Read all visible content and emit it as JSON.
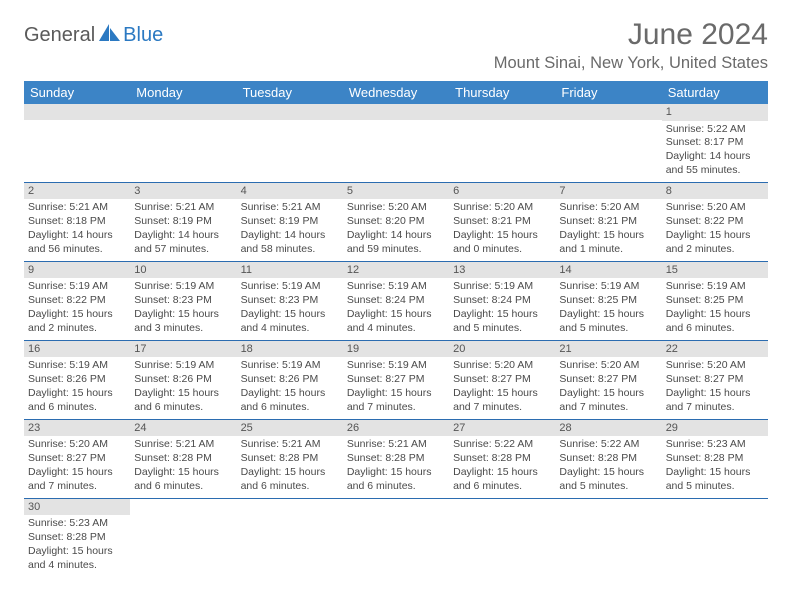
{
  "logo": {
    "text_dark": "General",
    "text_blue": "Blue"
  },
  "title": "June 2024",
  "location": "Mount Sinai, New York, United States",
  "colors": {
    "header_bg": "#3c84c6",
    "header_text": "#ffffff",
    "band_bg": "#e3e3e3",
    "border": "#2b6cb0",
    "logo_blue": "#2b79c2",
    "logo_dark": "#5a5a5a"
  },
  "day_headers": [
    "Sunday",
    "Monday",
    "Tuesday",
    "Wednesday",
    "Thursday",
    "Friday",
    "Saturday"
  ],
  "weeks": [
    [
      {
        "blank": true
      },
      {
        "blank": true
      },
      {
        "blank": true
      },
      {
        "blank": true
      },
      {
        "blank": true
      },
      {
        "blank": true
      },
      {
        "n": "1",
        "sunrise": "5:22 AM",
        "sunset": "8:17 PM",
        "daylight": "14 hours and 55 minutes."
      }
    ],
    [
      {
        "n": "2",
        "sunrise": "5:21 AM",
        "sunset": "8:18 PM",
        "daylight": "14 hours and 56 minutes."
      },
      {
        "n": "3",
        "sunrise": "5:21 AM",
        "sunset": "8:19 PM",
        "daylight": "14 hours and 57 minutes."
      },
      {
        "n": "4",
        "sunrise": "5:21 AM",
        "sunset": "8:19 PM",
        "daylight": "14 hours and 58 minutes."
      },
      {
        "n": "5",
        "sunrise": "5:20 AM",
        "sunset": "8:20 PM",
        "daylight": "14 hours and 59 minutes."
      },
      {
        "n": "6",
        "sunrise": "5:20 AM",
        "sunset": "8:21 PM",
        "daylight": "15 hours and 0 minutes."
      },
      {
        "n": "7",
        "sunrise": "5:20 AM",
        "sunset": "8:21 PM",
        "daylight": "15 hours and 1 minute."
      },
      {
        "n": "8",
        "sunrise": "5:20 AM",
        "sunset": "8:22 PM",
        "daylight": "15 hours and 2 minutes."
      }
    ],
    [
      {
        "n": "9",
        "sunrise": "5:19 AM",
        "sunset": "8:22 PM",
        "daylight": "15 hours and 2 minutes."
      },
      {
        "n": "10",
        "sunrise": "5:19 AM",
        "sunset": "8:23 PM",
        "daylight": "15 hours and 3 minutes."
      },
      {
        "n": "11",
        "sunrise": "5:19 AM",
        "sunset": "8:23 PM",
        "daylight": "15 hours and 4 minutes."
      },
      {
        "n": "12",
        "sunrise": "5:19 AM",
        "sunset": "8:24 PM",
        "daylight": "15 hours and 4 minutes."
      },
      {
        "n": "13",
        "sunrise": "5:19 AM",
        "sunset": "8:24 PM",
        "daylight": "15 hours and 5 minutes."
      },
      {
        "n": "14",
        "sunrise": "5:19 AM",
        "sunset": "8:25 PM",
        "daylight": "15 hours and 5 minutes."
      },
      {
        "n": "15",
        "sunrise": "5:19 AM",
        "sunset": "8:25 PM",
        "daylight": "15 hours and 6 minutes."
      }
    ],
    [
      {
        "n": "16",
        "sunrise": "5:19 AM",
        "sunset": "8:26 PM",
        "daylight": "15 hours and 6 minutes."
      },
      {
        "n": "17",
        "sunrise": "5:19 AM",
        "sunset": "8:26 PM",
        "daylight": "15 hours and 6 minutes."
      },
      {
        "n": "18",
        "sunrise": "5:19 AM",
        "sunset": "8:26 PM",
        "daylight": "15 hours and 6 minutes."
      },
      {
        "n": "19",
        "sunrise": "5:19 AM",
        "sunset": "8:27 PM",
        "daylight": "15 hours and 7 minutes."
      },
      {
        "n": "20",
        "sunrise": "5:20 AM",
        "sunset": "8:27 PM",
        "daylight": "15 hours and 7 minutes."
      },
      {
        "n": "21",
        "sunrise": "5:20 AM",
        "sunset": "8:27 PM",
        "daylight": "15 hours and 7 minutes."
      },
      {
        "n": "22",
        "sunrise": "5:20 AM",
        "sunset": "8:27 PM",
        "daylight": "15 hours and 7 minutes."
      }
    ],
    [
      {
        "n": "23",
        "sunrise": "5:20 AM",
        "sunset": "8:27 PM",
        "daylight": "15 hours and 7 minutes."
      },
      {
        "n": "24",
        "sunrise": "5:21 AM",
        "sunset": "8:28 PM",
        "daylight": "15 hours and 6 minutes."
      },
      {
        "n": "25",
        "sunrise": "5:21 AM",
        "sunset": "8:28 PM",
        "daylight": "15 hours and 6 minutes."
      },
      {
        "n": "26",
        "sunrise": "5:21 AM",
        "sunset": "8:28 PM",
        "daylight": "15 hours and 6 minutes."
      },
      {
        "n": "27",
        "sunrise": "5:22 AM",
        "sunset": "8:28 PM",
        "daylight": "15 hours and 6 minutes."
      },
      {
        "n": "28",
        "sunrise": "5:22 AM",
        "sunset": "8:28 PM",
        "daylight": "15 hours and 5 minutes."
      },
      {
        "n": "29",
        "sunrise": "5:23 AM",
        "sunset": "8:28 PM",
        "daylight": "15 hours and 5 minutes."
      }
    ],
    [
      {
        "n": "30",
        "sunrise": "5:23 AM",
        "sunset": "8:28 PM",
        "daylight": "15 hours and 4 minutes."
      },
      {
        "blank": true
      },
      {
        "blank": true
      },
      {
        "blank": true
      },
      {
        "blank": true
      },
      {
        "blank": true
      },
      {
        "blank": true
      }
    ]
  ]
}
